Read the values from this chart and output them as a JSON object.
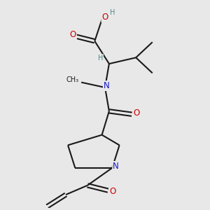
{
  "bg_color": "#e8e8e8",
  "atom_colors": {
    "C": "#1a1a1a",
    "O": "#cc0000",
    "N": "#1414cc",
    "H": "#4a8888"
  },
  "bond_color": "#1a1a1a",
  "bond_width": 1.5,
  "font_size_atoms": 8.5,
  "figsize": [
    3.0,
    3.0
  ],
  "dpi": 100
}
